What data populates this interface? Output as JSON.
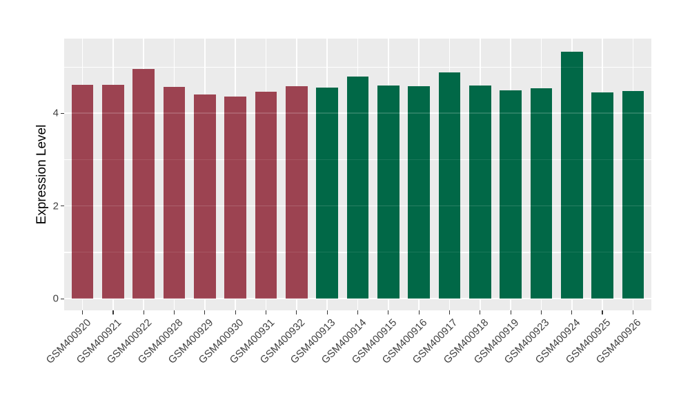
{
  "chart_data": {
    "type": "bar",
    "title": "",
    "xlabel": "",
    "ylabel": "Expression Level",
    "ylim": [
      -0.25,
      5.61
    ],
    "yticks": [
      0,
      2,
      4
    ],
    "ytick_labels": [
      "0",
      "2",
      "4"
    ],
    "yticks_minor": [
      1,
      3,
      5
    ],
    "grid": true,
    "legend_position": "none",
    "panel_bg": "#EBEBEB",
    "grid_color": "#FFFFFF",
    "tick_mark_color": "#333333",
    "tick_label_color": "#404040",
    "bar_width_fraction": 0.715,
    "categories": [
      "GSM400920",
      "GSM400921",
      "GSM400922",
      "GSM400928",
      "GSM400929",
      "GSM400930",
      "GSM400931",
      "GSM400932",
      "GSM400913",
      "GSM400914",
      "GSM400915",
      "GSM400916",
      "GSM400917",
      "GSM400918",
      "GSM400919",
      "GSM400923",
      "GSM400924",
      "GSM400925",
      "GSM400926"
    ],
    "values": [
      4.61,
      4.61,
      4.95,
      4.57,
      4.4,
      4.36,
      4.47,
      4.59,
      4.55,
      4.79,
      4.6,
      4.59,
      4.88,
      4.6,
      4.5,
      4.54,
      5.33,
      4.45,
      4.48
    ],
    "bar_colors": [
      "#9C4351",
      "#9C4351",
      "#9C4351",
      "#9C4351",
      "#9C4351",
      "#9C4351",
      "#9C4351",
      "#9C4351",
      "#016847",
      "#016847",
      "#016847",
      "#016847",
      "#016847",
      "#016847",
      "#016847",
      "#016847",
      "#016847",
      "#016847",
      "#016847"
    ],
    "accent_colors": {
      "maroon": "#9C4351",
      "green": "#016847"
    }
  }
}
